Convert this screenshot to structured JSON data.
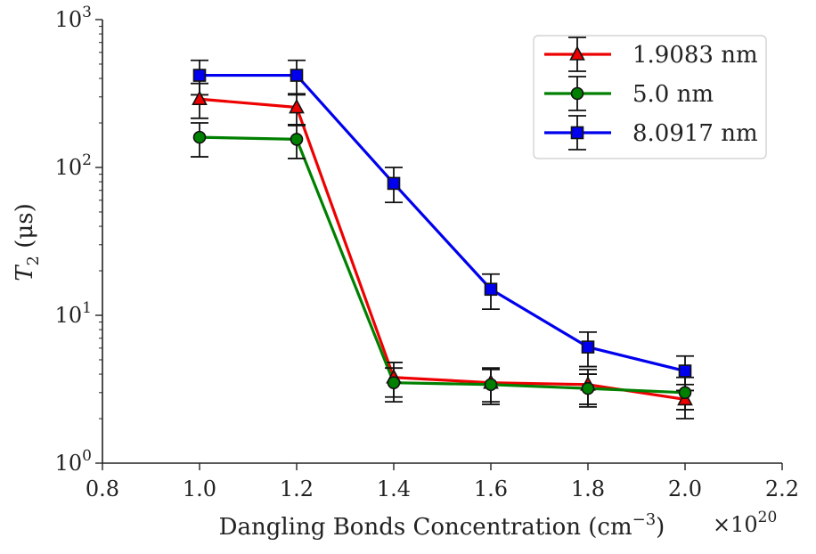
{
  "chart_data": {
    "type": "line",
    "xlabel": "Dangling Bonds Concentration (cm",
    "xlabel_sup": "−3",
    "xlabel_close": ")",
    "x_multiplier": "×10",
    "x_multiplier_exp": "20",
    "ylabel_main": "T",
    "ylabel_sub": "2",
    "ylabel_unit": " (μs)",
    "x_scale": "linear",
    "y_scale": "log",
    "xlim": [
      0.8,
      2.2
    ],
    "ylim": [
      1,
      1000
    ],
    "x_ticks": [
      0.8,
      1.0,
      1.2,
      1.4,
      1.6,
      1.8,
      2.0,
      2.2
    ],
    "x_tick_labels": [
      "0.8",
      "1.0",
      "1.2",
      "1.4",
      "1.6",
      "1.8",
      "2.0",
      "2.2"
    ],
    "y_ticks": [
      {
        "value": 1,
        "base": "10",
        "exp": "0"
      },
      {
        "value": 10,
        "base": "10",
        "exp": "1"
      },
      {
        "value": 100,
        "base": "10",
        "exp": "2"
      },
      {
        "value": 1000,
        "base": "10",
        "exp": "3"
      }
    ],
    "grid": false,
    "legend_position": "top-right",
    "x": [
      1.0,
      1.2,
      1.4,
      1.6,
      1.8,
      2.0
    ],
    "series": [
      {
        "name": "1.9083 nm",
        "color": "#ee0000",
        "marker": "triangle",
        "values": [
          290,
          255,
          3.8,
          3.5,
          3.4,
          2.7
        ],
        "err_low": [
          215,
          195,
          2.8,
          2.6,
          2.5,
          2.0
        ],
        "err_high": [
          370,
          315,
          4.8,
          4.4,
          4.3,
          3.4
        ]
      },
      {
        "name": "5.0 nm",
        "color": "#008000",
        "marker": "circle",
        "values": [
          160,
          155,
          3.5,
          3.4,
          3.2,
          3.0
        ],
        "err_low": [
          118,
          115,
          2.6,
          2.5,
          2.4,
          2.3
        ],
        "err_high": [
          200,
          192,
          4.4,
          4.3,
          4.0,
          3.8
        ]
      },
      {
        "name": "8.0917 nm",
        "color": "#0000ee",
        "marker": "square",
        "values": [
          420,
          420,
          78,
          15,
          6.1,
          4.2
        ],
        "err_low": [
          310,
          310,
          58,
          11,
          4.5,
          3.1
        ],
        "err_high": [
          530,
          530,
          100,
          19,
          7.7,
          5.3
        ]
      }
    ]
  }
}
